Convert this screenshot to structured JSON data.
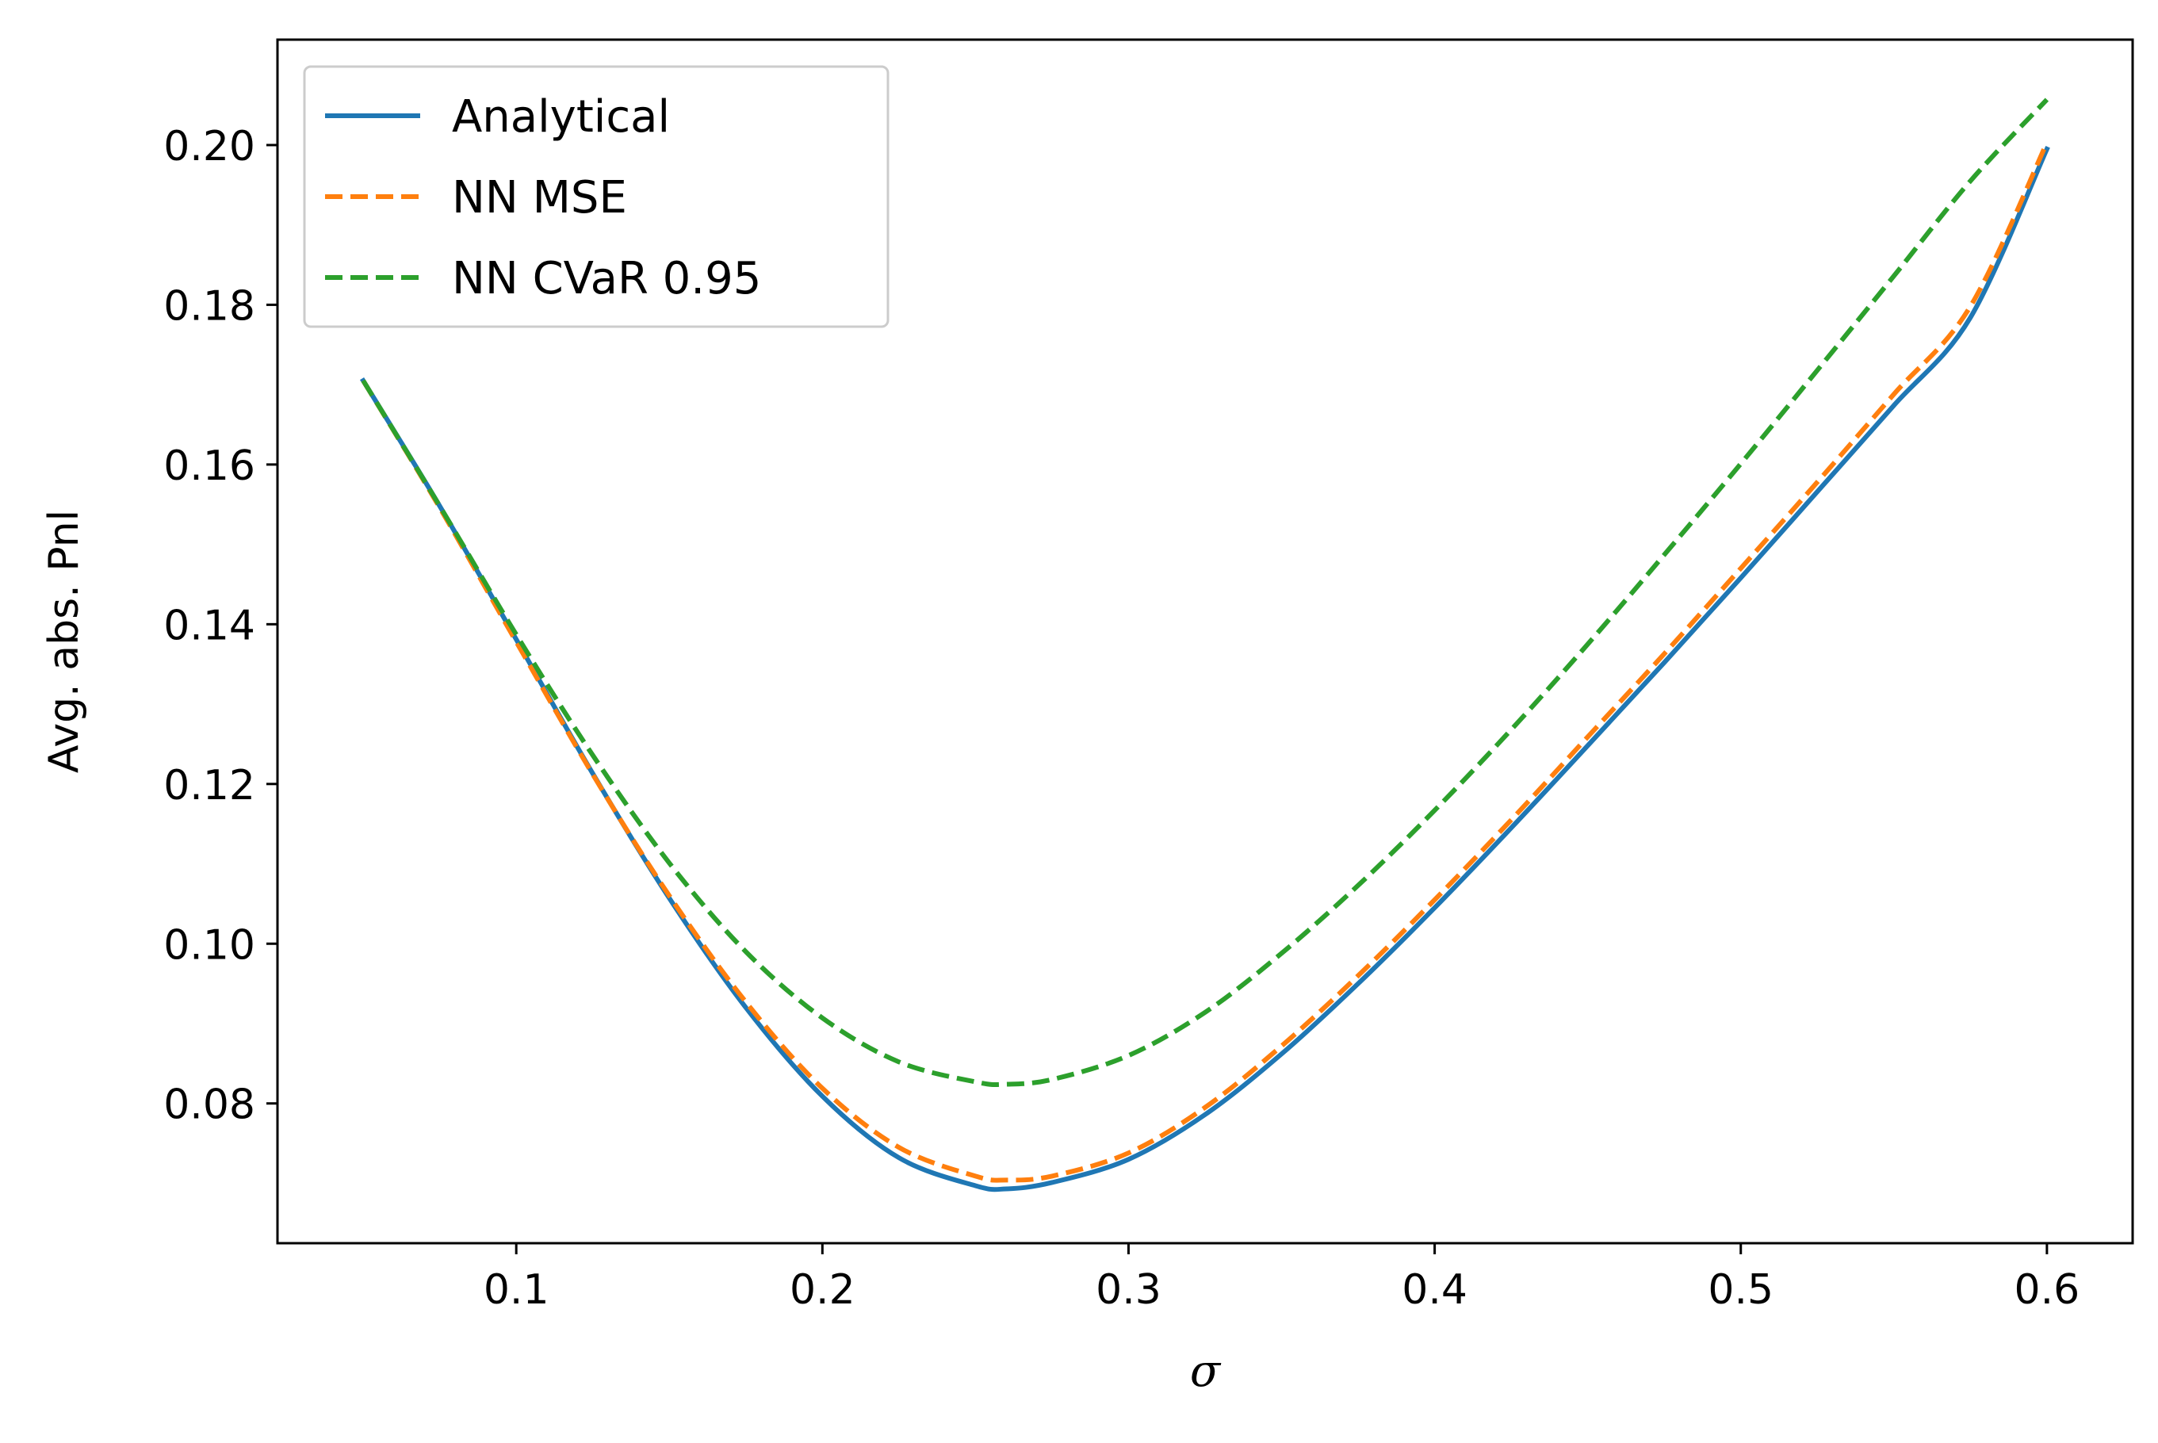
{
  "chart_data": {
    "type": "line",
    "title": "",
    "xlabel": "σ",
    "ylabel": "Avg. abs. Pnl",
    "xlim": [
      0.022,
      0.628
    ],
    "ylim": [
      0.0625,
      0.2132
    ],
    "xticks": [
      0.1,
      0.2,
      0.3,
      0.4,
      0.5,
      0.6
    ],
    "xtick_labels": [
      "0.1",
      "0.2",
      "0.3",
      "0.4",
      "0.5",
      "0.6"
    ],
    "yticks": [
      0.08,
      0.1,
      0.12,
      0.14,
      0.16,
      0.18,
      0.2
    ],
    "ytick_labels": [
      "0.08",
      "0.10",
      "0.12",
      "0.14",
      "0.16",
      "0.18",
      "0.20"
    ],
    "grid": false,
    "legend_position": "upper-left",
    "x": [
      0.05,
      0.075,
      0.1,
      0.125,
      0.15,
      0.175,
      0.2,
      0.225,
      0.25,
      0.26,
      0.275,
      0.3,
      0.325,
      0.35,
      0.375,
      0.4,
      0.425,
      0.45,
      0.475,
      0.5,
      0.525,
      0.55,
      0.575,
      0.6
    ],
    "series": [
      {
        "name": "Analytical",
        "color": "#1f77b4",
        "style": "solid",
        "values": [
          0.1705,
          0.1548,
          0.1381,
          0.1213,
          0.1057,
          0.092,
          0.0809,
          0.0732,
          0.0697,
          0.0693,
          0.0701,
          0.073,
          0.0786,
          0.0862,
          0.095,
          0.1045,
          0.1145,
          0.1248,
          0.1352,
          0.1458,
          0.1566,
          0.1674,
          0.1784,
          0.1995
        ]
      },
      {
        "name": "NN MSE",
        "color": "#ff7f0e",
        "style": "dashed",
        "values": [
          0.1705,
          0.1546,
          0.1378,
          0.1212,
          0.106,
          0.0927,
          0.0819,
          0.0745,
          0.0709,
          0.0704,
          0.0709,
          0.0738,
          0.0795,
          0.0872,
          0.096,
          0.1055,
          0.1155,
          0.1259,
          0.1363,
          0.147,
          0.1578,
          0.1688,
          0.1798,
          0.2003
        ]
      },
      {
        "name": "NN CVaR 0.95",
        "color": "#2ca02c",
        "style": "dashed",
        "values": [
          0.1705,
          0.1548,
          0.1387,
          0.1236,
          0.1101,
          0.099,
          0.0907,
          0.0852,
          0.0827,
          0.0824,
          0.083,
          0.086,
          0.0914,
          0.0988,
          0.1073,
          0.1167,
          0.1268,
          0.1375,
          0.1487,
          0.1601,
          0.1718,
          0.1836,
          0.1955,
          0.2057
        ]
      }
    ]
  }
}
